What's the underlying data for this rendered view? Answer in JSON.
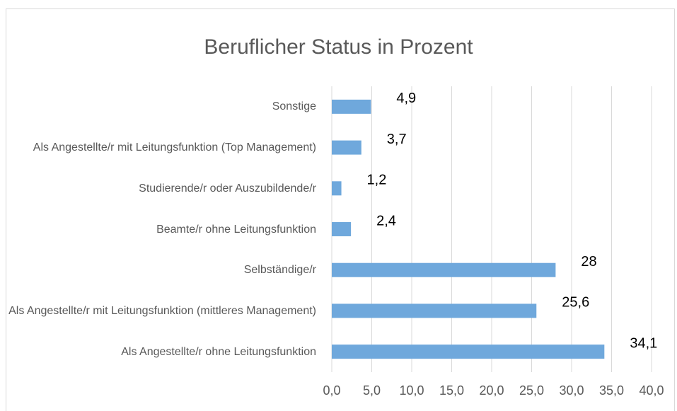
{
  "chart_data": {
    "type": "bar",
    "orientation": "horizontal",
    "title": "Beruflicher Status in Prozent",
    "categories": [
      "Sonstige",
      "Als Angestellte/r mit Leitungsfunktion (Top Management)",
      "Studierende/r oder Auszubildende/r",
      "Beamte/r ohne Leitungsfunktion",
      "Selbständige/r",
      "Als Angestellte/r mit Leitungsfunktion (mittleres Management)",
      "Als Angestellte/r ohne Leitungsfunktion"
    ],
    "values": [
      4.9,
      3.7,
      1.2,
      2.4,
      28,
      25.6,
      34.1
    ],
    "value_labels": [
      "4,9",
      "3,7",
      "1,2",
      "2,4",
      "28",
      "25,6",
      "34,1"
    ],
    "color": "#6fa8dc",
    "xlim": [
      0,
      40
    ],
    "xticks": [
      {
        "value": 0,
        "label": "0,0"
      },
      {
        "value": 5,
        "label": "5,0"
      },
      {
        "value": 10,
        "label": "10,0"
      },
      {
        "value": 15,
        "label": "15,0"
      },
      {
        "value": 20,
        "label": "20,0"
      },
      {
        "value": 25,
        "label": "25,0"
      },
      {
        "value": 30,
        "label": "30,0"
      },
      {
        "value": 35,
        "label": "35,0"
      },
      {
        "value": 40,
        "label": "40,0"
      }
    ],
    "grid": true
  }
}
